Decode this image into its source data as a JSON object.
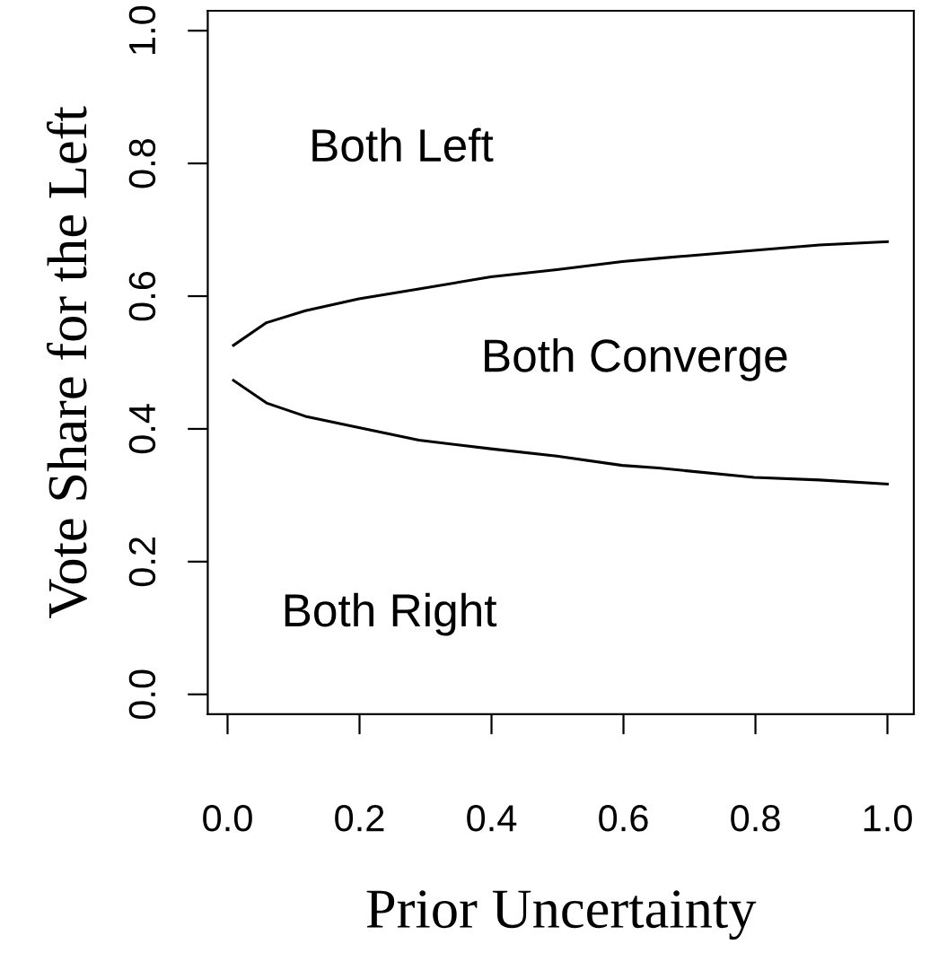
{
  "chart_data": {
    "type": "line",
    "xlabel": "Prior Uncertainty",
    "ylabel": "Vote Share for the Left",
    "x": [
      0.009,
      0.059,
      0.118,
      0.199,
      0.29,
      0.399,
      0.499,
      0.598,
      0.653,
      0.798,
      0.897,
      1.0
    ],
    "series": [
      {
        "color": "#000000",
        "values": [
          0.526,
          0.56,
          0.578,
          0.596,
          0.611,
          0.629,
          0.64,
          0.652,
          0.657,
          0.669,
          0.677,
          0.682
        ]
      },
      {
        "color": "#000000",
        "values": [
          0.473,
          0.439,
          0.419,
          0.402,
          0.383,
          0.37,
          0.359,
          0.345,
          0.341,
          0.327,
          0.323,
          0.317
        ]
      }
    ],
    "annotations": [
      "Both Left",
      "Both Converge",
      "Both Right"
    ],
    "xlim": [
      -0.03,
      1.04
    ],
    "ylim": [
      -0.03,
      1.03
    ],
    "xticks": [
      {
        "value": 0,
        "label": "0.0"
      },
      0.2,
      0.4,
      0.6,
      0.8,
      {
        "value": 1,
        "label": "1.0"
      }
    ],
    "yticks": [
      {
        "value": 0,
        "label": "0.0"
      },
      0.2,
      0.4,
      0.6,
      0.8,
      {
        "value": 1,
        "label": "1.0"
      }
    ],
    "grid": false,
    "legend": false
  }
}
